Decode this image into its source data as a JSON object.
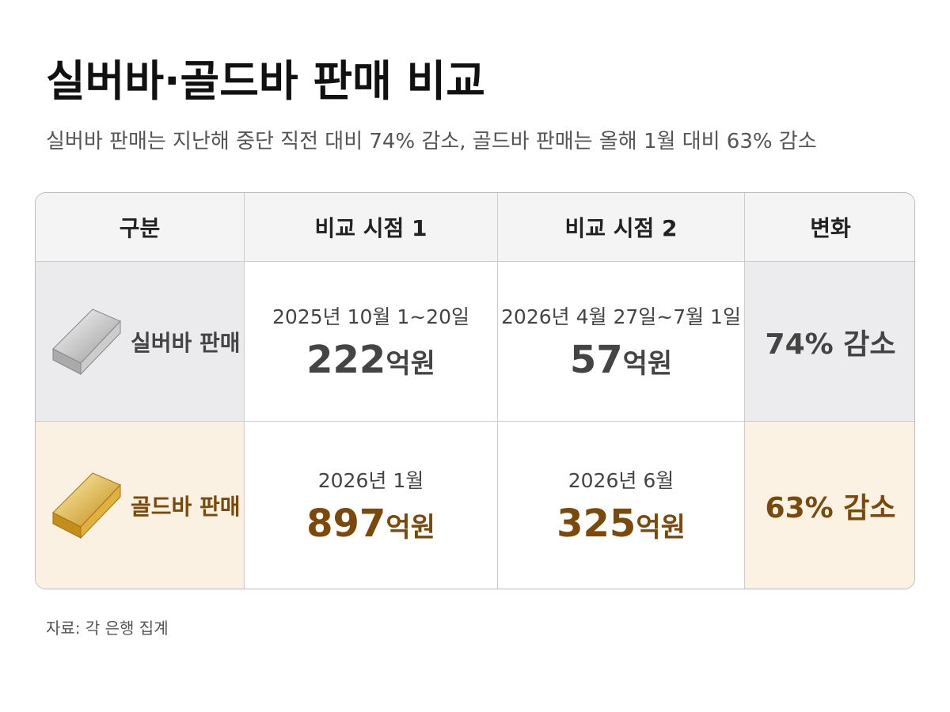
{
  "header": {
    "title": "실버바·골드바 판매 비교",
    "subtitle": "실버바 판매는 지난해 중단 직전 대비 74% 감소, 골드바 판매는 올해 1월 대비 63% 감소"
  },
  "table": {
    "columns": [
      "구분",
      "비교 시점 1",
      "비교 시점 2",
      "변화"
    ],
    "rows": [
      {
        "label": "실버바 판매",
        "period1": "2025년 10월 1~20일",
        "amount1": "222",
        "unit1": "억원",
        "period2": "2026년 4월 27일~7월 1일",
        "amount2": "57",
        "unit2": "억원",
        "change": "74% 감소"
      },
      {
        "label": "골드바 판매",
        "period1": "2026년 1월",
        "amount1": "897",
        "unit1": "억원",
        "period2": "2026년 6월",
        "amount2": "325",
        "unit2": "억원",
        "change": "63% 감소"
      }
    ]
  },
  "footer": {
    "source": "자료: 각 은행 집계"
  }
}
